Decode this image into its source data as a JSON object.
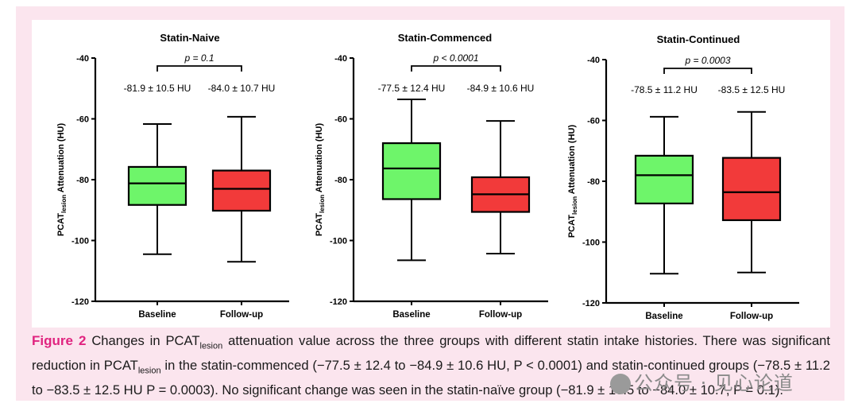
{
  "colors": {
    "baseline_fill": "#6ef56a",
    "followup_fill": "#f23a3a",
    "caption_label": "#e0237f",
    "frame_bg": "#fbe5ee"
  },
  "chart_data": [
    {
      "type": "box",
      "title": "Statin-Naive",
      "ylabel": "PCAT",
      "ylabel_sub": "lesion",
      "ylabel_rest": " Attenuation (HU)",
      "ylim": [
        -120,
        -40
      ],
      "yticks": [
        -40,
        -60,
        -80,
        -100,
        -120
      ],
      "categories": [
        "Baseline",
        "Follow-up"
      ],
      "boxes": [
        {
          "min": -104.5,
          "q1": -88.3,
          "median": -81.2,
          "q3": -75.8,
          "max": -61.7,
          "label": "-81.9 ± 10.5  HU"
        },
        {
          "min": -107.0,
          "q1": -90.2,
          "median": -83.0,
          "q3": -77.0,
          "max": -59.3,
          "label": "-84.0 ± 10.7  HU"
        }
      ],
      "pvalue": "p = 0.1"
    },
    {
      "type": "box",
      "title": "Statin-Commenced",
      "ylabel": "PCAT",
      "ylabel_sub": "lesion",
      "ylabel_rest": " Attenuation (HU)",
      "ylim": [
        -120,
        -40
      ],
      "yticks": [
        -40,
        -60,
        -80,
        -100,
        -120
      ],
      "categories": [
        "Baseline",
        "Follow-up"
      ],
      "boxes": [
        {
          "min": -106.5,
          "q1": -86.4,
          "median": -76.3,
          "q3": -68.0,
          "max": -53.6,
          "label": "-77.5 ± 12.4  HU"
        },
        {
          "min": -104.3,
          "q1": -90.6,
          "median": -84.8,
          "q3": -79.2,
          "max": -60.7,
          "label": "-84.9 ± 10.6  HU"
        }
      ],
      "pvalue": "p < 0.0001"
    },
    {
      "type": "box",
      "title": "Statin-Continued",
      "ylabel": "PCAT",
      "ylabel_sub": "lesion",
      "ylabel_rest": " Attenuation (HU)",
      "ylim": [
        -120,
        -40
      ],
      "yticks": [
        -40,
        -60,
        -80,
        -100,
        -120
      ],
      "categories": [
        "Baseline",
        "Follow-up"
      ],
      "boxes": [
        {
          "min": -110.4,
          "q1": -87.3,
          "median": -78.0,
          "q3": -71.6,
          "max": -58.8,
          "label": "-78.5 ± 11.2  HU"
        },
        {
          "min": -110.0,
          "q1": -92.8,
          "median": -83.6,
          "q3": -72.3,
          "max": -57.2,
          "label": "-83.5 ± 12.5  HU"
        }
      ],
      "pvalue": "p = 0.0003"
    }
  ],
  "caption": {
    "label": "Figure 2",
    "p1": "  Changes in PCAT",
    "sub1": "lesion",
    "p2": " attenuation value across the three groups with different statin intake histories. There was significant reduction in PCAT",
    "sub2": "lesion",
    "p3": " in the statin-commenced (−77.5 ± 12.4 to −84.9 ± 10.6 HU, P < 0.0001) and statin-continued groups (−78.5 ± 11.2 to −83.5 ± 12.5 HU P = 0.0003). No significant change was seen in the statin-naïve group (−81.9 ± 10.5 to −84.0 ± 10.7, P = 0.1)."
  },
  "watermark": "公众号 · 见心论道"
}
